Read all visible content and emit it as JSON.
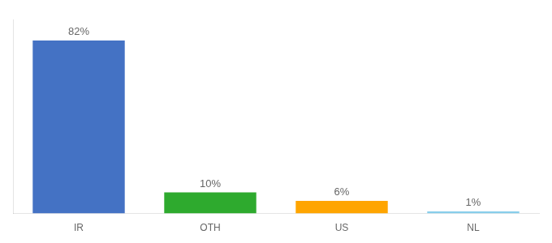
{
  "chart_data": {
    "type": "bar",
    "categories": [
      "IR",
      "OTH",
      "US",
      "NL"
    ],
    "values": [
      82,
      10,
      6,
      1
    ],
    "value_labels": [
      "82%",
      "10%",
      "6%",
      "1%"
    ],
    "colors": [
      "#4472C4",
      "#2EAA2E",
      "#FFA500",
      "#87CEEB"
    ],
    "ylim": [
      0,
      92
    ],
    "data_labels": true,
    "tick_labels": "x",
    "grid": false
  }
}
